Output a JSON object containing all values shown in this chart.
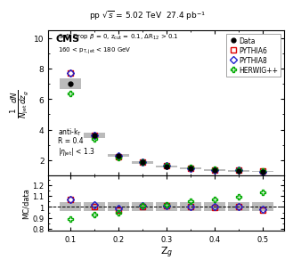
{
  "zg_centers": [
    0.1,
    0.15,
    0.2,
    0.25,
    0.3,
    0.35,
    0.4,
    0.45,
    0.5
  ],
  "data_y": [
    7.0,
    3.6,
    2.3,
    1.85,
    1.6,
    1.45,
    1.35,
    1.3,
    1.25
  ],
  "data_err_stat": [
    0.15,
    0.08,
    0.06,
    0.05,
    0.04,
    0.04,
    0.04,
    0.04,
    0.04
  ],
  "data_err_syst": [
    0.35,
    0.18,
    0.1,
    0.07,
    0.06,
    0.05,
    0.05,
    0.05,
    0.04
  ],
  "pythia6_y": [
    7.7,
    3.65,
    2.25,
    1.85,
    1.62,
    1.47,
    1.37,
    1.32,
    1.26
  ],
  "pythia8_y": [
    7.7,
    3.65,
    2.28,
    1.87,
    1.63,
    1.47,
    1.37,
    1.32,
    1.25
  ],
  "herwig_y": [
    6.4,
    3.38,
    2.18,
    1.87,
    1.64,
    1.5,
    1.4,
    1.33,
    1.28
  ],
  "ratio_pythia6": [
    1.07,
    1.0,
    0.97,
    1.0,
    1.01,
    1.0,
    0.995,
    1.0,
    0.97
  ],
  "ratio_pythia8": [
    1.07,
    1.02,
    0.99,
    1.01,
    1.01,
    1.0,
    1.0,
    1.0,
    0.98
  ],
  "ratio_herwig": [
    0.89,
    0.93,
    0.945,
    1.01,
    1.02,
    1.05,
    1.065,
    1.095,
    1.13
  ],
  "ratio_syst_half": 0.04,
  "xlim": [
    0.055,
    0.545
  ],
  "ylim_main": [
    1.0,
    10.5
  ],
  "ylim_ratio": [
    0.78,
    1.29
  ],
  "xlabel": "Z$_g$",
  "ylabel_ratio": "MC/data",
  "cms_label": "CMS",
  "cms_info": "pp $\\sqrt{s}$ = 5.02 TeV  27.4 pb$^{-1}$",
  "annotation1": "Soft Drop $\\beta$ = 0, z$_{\\rm cut}$ = 0.1, $\\Delta$R$_{12}$ > 0.1",
  "annotation2": "160 < p$_{\\rm T,jet}$ < 180 GeV",
  "annotation3": "anti-k$_{\\rm T}$",
  "annotation4": "R = 0.4",
  "annotation5": "|$\\eta_{\\rm jet}$| < 1.3",
  "color_data": "#000000",
  "color_pythia6": "#dd0000",
  "color_pythia8": "#2222cc",
  "color_herwig": "#00aa00",
  "color_syst": "#b0b0b0",
  "xticks": [
    0.1,
    0.2,
    0.3,
    0.4,
    0.5
  ],
  "yticks_main": [
    2,
    4,
    6,
    8,
    10
  ],
  "yticks_ratio": [
    0.8,
    0.9,
    1.0,
    1.1,
    1.2
  ]
}
